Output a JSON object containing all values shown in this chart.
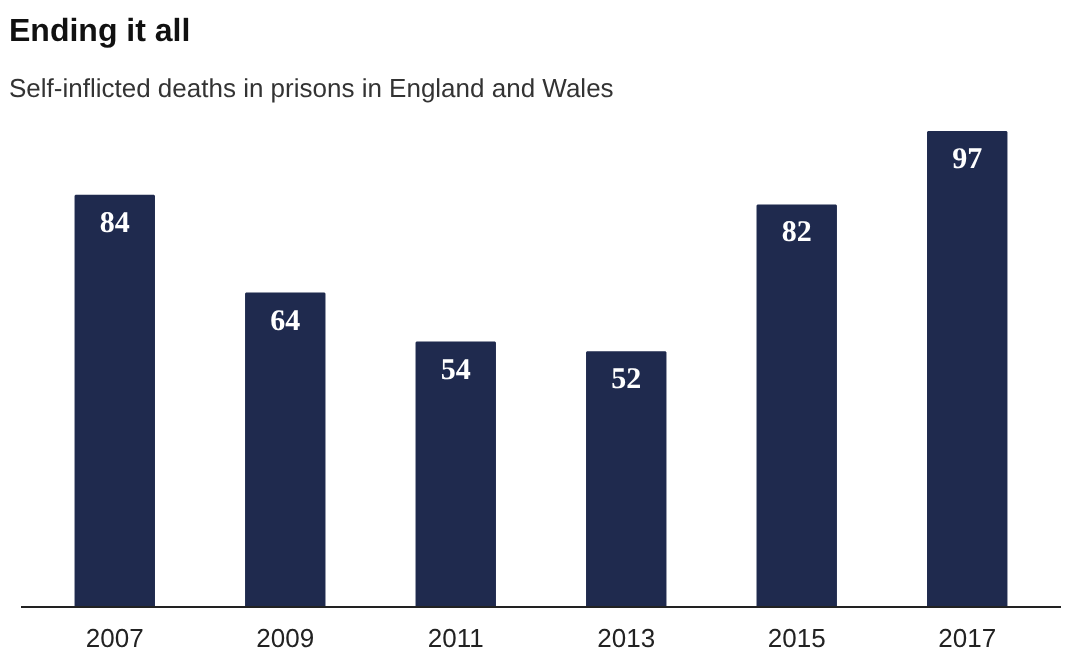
{
  "chart_data": {
    "type": "bar",
    "title": "Ending it all",
    "subtitle": "Self-inflicted deaths in prisons in England and Wales",
    "categories": [
      "2007",
      "2009",
      "2011",
      "2013",
      "2015",
      "2017"
    ],
    "values": [
      84,
      64,
      54,
      52,
      82,
      97
    ],
    "color": "#1f2a4e",
    "data_labels": true,
    "grid": false
  }
}
